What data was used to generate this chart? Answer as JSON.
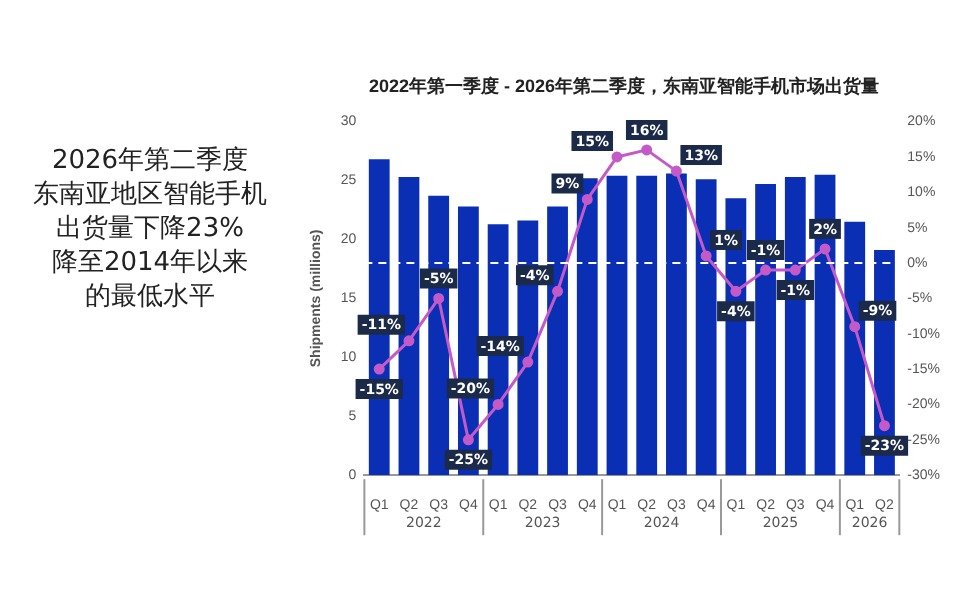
{
  "chart_data": {
    "type": "bar",
    "title": "2022年第一季度 - 2026年第二季度，东南亚智能手机市场出货量",
    "ylabel": "Shipments (millions)",
    "categories": [
      "Q1",
      "Q2",
      "Q3",
      "Q4",
      "Q1",
      "Q2",
      "Q3",
      "Q4",
      "Q1",
      "Q2",
      "Q3",
      "Q4",
      "Q1",
      "Q2",
      "Q3",
      "Q4",
      "Q1",
      "Q2"
    ],
    "series": [
      {
        "color": "#0a2fb4",
        "values": [
          26.8,
          25.3,
          23.7,
          22.8,
          21.3,
          21.6,
          22.8,
          25.2,
          25.4,
          25.4,
          25.6,
          25.1,
          23.5,
          24.7,
          25.3,
          25.5,
          21.5,
          19.1
        ]
      },
      {
        "type": "line",
        "axis": "y2",
        "color": "#c45ac8",
        "marker": "circle",
        "values": [
          -15,
          -11,
          -5,
          -25,
          -20,
          -14,
          -4,
          9,
          15,
          16,
          13,
          1,
          -4,
          -1,
          -1,
          2,
          -9,
          -23
        ],
        "value_labels": [
          "-15%",
          "-11%",
          "-5%",
          "-25%",
          "-20%",
          "-14%",
          "-4%",
          "9%",
          "15%",
          "16%",
          "13%",
          "1%",
          "-4%",
          "-1%",
          "-1%",
          "2%",
          "-9%",
          "-23%"
        ]
      }
    ],
    "ylim": [
      0,
      30
    ],
    "yticks": [
      0,
      5,
      10,
      15,
      20,
      25,
      30
    ],
    "y2lim": [
      -30,
      20
    ],
    "y2ticks": [
      {
        "value": -30,
        "label": "-30%"
      },
      {
        "value": -25,
        "label": "-25%"
      },
      {
        "value": -20,
        "label": "-20%"
      },
      {
        "value": -15,
        "label": "-15%"
      },
      {
        "value": -10,
        "label": "-10%"
      },
      {
        "value": -5,
        "label": "-5%"
      },
      {
        "value": 0,
        "label": "0%"
      },
      {
        "value": 5,
        "label": "5%"
      },
      {
        "value": 10,
        "label": "10%"
      },
      {
        "value": 15,
        "label": "15%"
      },
      {
        "value": 20,
        "label": "20%"
      }
    ],
    "ref_lines": [
      {
        "axis": "y2",
        "value": 0,
        "color": "#ffffff",
        "line_style": "dashed"
      }
    ],
    "annotations": [
      "2022",
      "2023",
      "2024",
      "2025",
      "2026",
      "2026年第二季度",
      "东南亚地区智能手机",
      "出货量下降23%",
      "降至2014年以来",
      "的最低水平"
    ],
    "grid": false,
    "legend": false
  }
}
